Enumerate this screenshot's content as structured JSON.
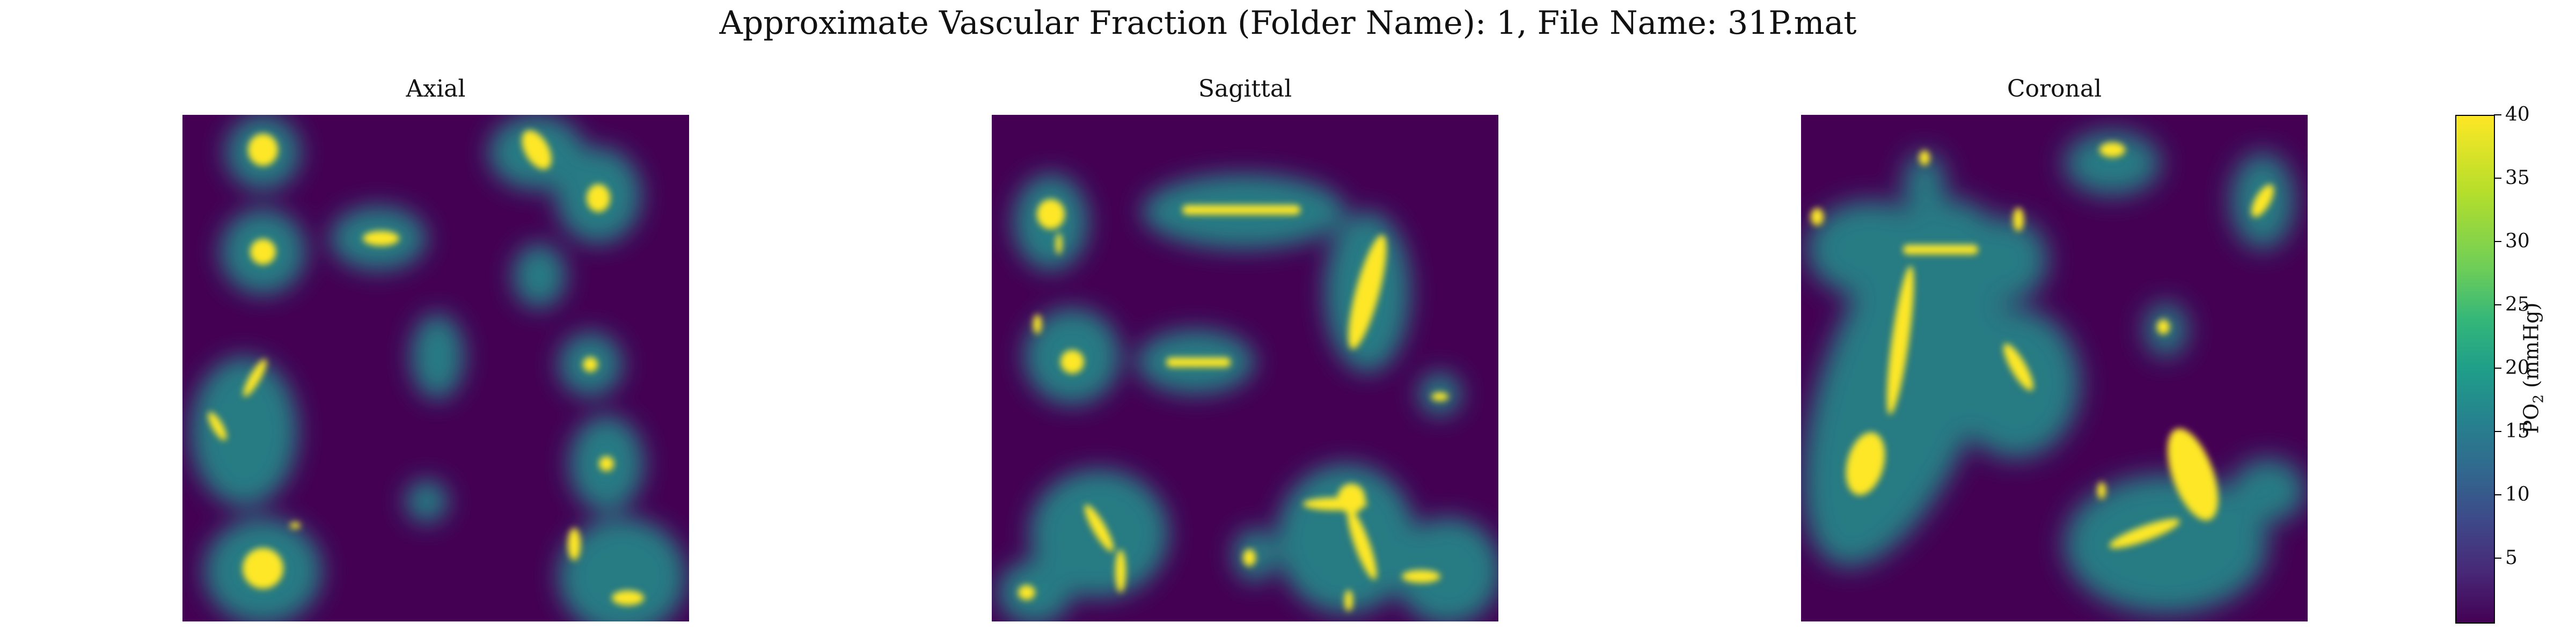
{
  "figure": {
    "suptitle": "Approximate Vascular Fraction (Folder Name): 1, File Name: 31P.mat",
    "panels": [
      {
        "title": "Axial"
      },
      {
        "title": "Sagittal"
      },
      {
        "title": "Coronal"
      }
    ],
    "colorbar": {
      "label": "PO2 (mmHg)",
      "min": 0,
      "max": 40,
      "ticks": [
        "5",
        "10",
        "15",
        "20",
        "25",
        "30",
        "35",
        "40"
      ],
      "colormap": "viridis",
      "colors": [
        "#440154",
        "#482878",
        "#3e4989",
        "#31688e",
        "#26828e",
        "#1f9e89",
        "#35b779",
        "#6ece58",
        "#b5de2b",
        "#fde725"
      ]
    }
  }
}
